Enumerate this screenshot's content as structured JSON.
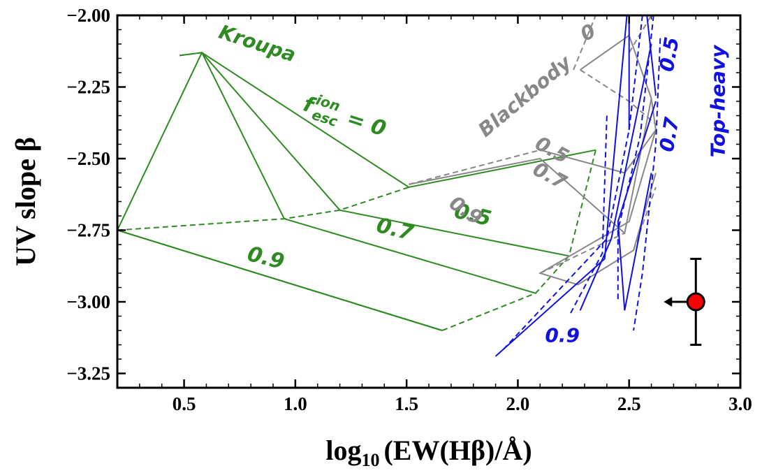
{
  "chart_data": {
    "type": "line",
    "xlabel_parts": {
      "prefix": "log",
      "sub": "10",
      "rest": "(EW(Hβ)/Å)"
    },
    "ylabel": "UV slope β",
    "xlim": [
      0.2,
      3.0
    ],
    "ylim": [
      -3.3,
      -2.0
    ],
    "x_ticks": [
      "0.5",
      "1.0",
      "1.5",
      "2.0",
      "2.5",
      "3.0"
    ],
    "y_ticks": [
      "−2.00",
      "−2.25",
      "−2.50",
      "−2.75",
      "−3.00",
      "−3.25"
    ],
    "grid": false,
    "colors": {
      "kroupa": "#2e8b22",
      "blackbody": "#888888",
      "topheavy": "#1010e0",
      "point": "#ff0000"
    },
    "models": [
      {
        "key": "kroupa",
        "lines_solid": [
          [
            [
              0.48,
              -2.14
            ],
            [
              0.58,
              -2.13
            ],
            [
              0.2,
              -2.75
            ],
            [
              1.66,
              -3.1
            ]
          ],
          [
            [
              0.58,
              -2.13
            ],
            [
              1.51,
              -2.6
            ],
            [
              2.35,
              -2.47
            ]
          ],
          [
            [
              0.58,
              -2.13
            ],
            [
              1.2,
              -2.68
            ],
            [
              2.23,
              -2.84
            ]
          ],
          [
            [
              0.58,
              -2.13
            ],
            [
              0.95,
              -2.71
            ],
            [
              2.08,
              -2.97
            ]
          ],
          [
            [
              0.2,
              -2.75
            ],
            [
              1.66,
              -3.1
            ]
          ]
        ],
        "lines_dashed": [
          [
            [
              0.48,
              -2.14
            ],
            [
              0.58,
              -2.13
            ]
          ],
          [
            [
              0.2,
              -2.75
            ],
            [
              0.95,
              -2.71
            ],
            [
              1.2,
              -2.68
            ],
            [
              1.51,
              -2.6
            ]
          ],
          [
            [
              2.35,
              -2.47
            ],
            [
              2.23,
              -2.84
            ],
            [
              2.08,
              -2.97
            ],
            [
              1.66,
              -3.1
            ]
          ]
        ]
      },
      {
        "key": "blackbody",
        "lines_solid": [
          [
            [
              2.5,
              -2.0
            ],
            [
              2.5,
              -2.07
            ],
            [
              2.28,
              -2.19
            ]
          ],
          [
            [
              2.5,
              -2.07
            ],
            [
              2.6,
              -2.29
            ],
            [
              2.62,
              -2.4
            ],
            [
              2.48,
              -2.55
            ],
            [
              2.1,
              -2.47
            ]
          ],
          [
            [
              2.6,
              -2.29
            ],
            [
              2.48,
              -2.76
            ],
            [
              2.1,
              -2.5
            ],
            [
              1.51,
              -2.59
            ]
          ],
          [
            [
              2.62,
              -2.4
            ],
            [
              2.5,
              -2.72
            ],
            [
              2.1,
              -2.9
            ],
            [
              2.27,
              -2.94
            ],
            [
              2.52,
              -2.82
            ],
            [
              2.62,
              -2.55
            ]
          ]
        ],
        "lines_dashed": [
          [
            [
              2.25,
              -2.19
            ],
            [
              2.35,
              -2.0
            ]
          ],
          [
            [
              2.28,
              -2.19
            ],
            [
              2.5,
              -2.3
            ],
            [
              2.62,
              -2.38
            ]
          ],
          [
            [
              1.51,
              -2.59
            ],
            [
              2.1,
              -2.47
            ]
          ],
          [
            [
              2.1,
              -2.9
            ],
            [
              2.48,
              -2.76
            ]
          ],
          [
            [
              2.52,
              -2.82
            ],
            [
              2.62,
              -2.6
            ]
          ],
          [
            [
              2.5,
              -2.13
            ],
            [
              2.6,
              -2.0
            ]
          ]
        ]
      },
      {
        "key": "topheavy",
        "lines_solid": [
          [
            [
              2.49,
              -2.0
            ],
            [
              2.39,
              -2.85
            ],
            [
              1.9,
              -3.19
            ]
          ],
          [
            [
              2.6,
              -2.1
            ],
            [
              2.42,
              -2.78
            ],
            [
              2.28,
              -3.03
            ]
          ],
          [
            [
              2.62,
              -2.3
            ],
            [
              2.45,
              -2.72
            ],
            [
              2.48,
              -3.03
            ],
            [
              2.6,
              -2.55
            ]
          ],
          [
            [
              2.58,
              -2.0
            ],
            [
              2.62,
              -2.28
            ]
          ],
          [
            [
              2.5,
              -2.0
            ],
            [
              2.5,
              -2.4
            ]
          ]
        ],
        "lines_dashed": [
          [
            [
              2.4,
              -2.35
            ],
            [
              2.38,
              -2.83
            ],
            [
              2.23,
              -3.05
            ]
          ],
          [
            [
              2.56,
              -2.0
            ],
            [
              2.5,
              -2.4
            ],
            [
              2.4,
              -2.78
            ],
            [
              1.93,
              -3.17
            ]
          ],
          [
            [
              2.61,
              -2.0
            ],
            [
              2.55,
              -2.42
            ],
            [
              2.45,
              -2.75
            ],
            [
              2.45,
              -3.0
            ]
          ],
          [
            [
              2.64,
              -2.08
            ],
            [
              2.62,
              -2.45
            ],
            [
              2.56,
              -2.9
            ],
            [
              2.52,
              -3.1
            ]
          ]
        ]
      }
    ],
    "data_point": {
      "x": 2.8,
      "y": -3.0,
      "yerr_low": 0.15,
      "yerr_high": 0.15,
      "upper_limit_x": true
    },
    "annotations": [
      {
        "text": "Kroupa",
        "x": 0.82,
        "y": -2.12,
        "color": "#2e8b22",
        "rotate": 18,
        "size": 28
      },
      {
        "text": "0.5",
        "x": 1.79,
        "y": -2.72,
        "color": "#2e8b22",
        "rotate": 14,
        "size": 30
      },
      {
        "text": "0.7",
        "x": 1.44,
        "y": -2.77,
        "color": "#2e8b22",
        "rotate": 14,
        "size": 30
      },
      {
        "text": "0.9",
        "x": 0.86,
        "y": -2.87,
        "color": "#2e8b22",
        "rotate": 14,
        "size": 30
      },
      {
        "text": "Blackbody",
        "x": 2.05,
        "y": -2.3,
        "color": "#888888",
        "rotate": -40,
        "size": 28
      },
      {
        "text": "0",
        "x": 2.33,
        "y": -2.08,
        "color": "#888888",
        "rotate": -30,
        "size": 28
      },
      {
        "text": "0.5",
        "x": 2.14,
        "y": -2.49,
        "color": "#888888",
        "rotate": 28,
        "size": 28
      },
      {
        "text": "0.7",
        "x": 2.13,
        "y": -2.58,
        "color": "#888888",
        "rotate": 28,
        "size": 28
      },
      {
        "text": "0.9",
        "x": 1.75,
        "y": -2.7,
        "color": "#888888",
        "rotate": 34,
        "size": 28
      },
      {
        "text": "0.5",
        "x": 2.71,
        "y": -2.14,
        "color": "#1010e0",
        "rotate": -80,
        "size": 28
      },
      {
        "text": "0.7",
        "x": 2.71,
        "y": -2.42,
        "color": "#1010e0",
        "rotate": -80,
        "size": 28
      },
      {
        "text": "0.9",
        "x": 2.2,
        "y": -3.14,
        "color": "#1010e0",
        "rotate": 0,
        "size": 28
      },
      {
        "text": "Top-heavy",
        "x": 2.93,
        "y": -2.3,
        "color": "#1010e0",
        "rotate": -90,
        "size": 28
      }
    ],
    "fesc_label": {
      "f": "f",
      "sup": "ion",
      "sub": "esc",
      "eq": " = 0",
      "x": 1.03,
      "y": -2.33,
      "color": "#2e8b22",
      "rotate": 18
    }
  }
}
